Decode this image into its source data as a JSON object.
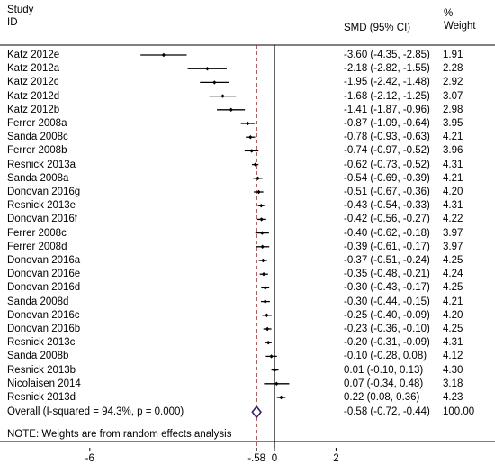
{
  "chart_data": {
    "type": "forest",
    "headers": {
      "study_line1": "Study",
      "study_line2": "ID",
      "effect": "SMD (95% CI)",
      "weight_line1": "%",
      "weight_line2": "Weight"
    },
    "studies": [
      {
        "id": "Katz 2012e",
        "smd": -3.6,
        "lo": -4.35,
        "hi": -2.85,
        "ci_text": "-3.60 (-4.35, -2.85)",
        "weight": "1.91"
      },
      {
        "id": "Katz 2012a",
        "smd": -2.18,
        "lo": -2.82,
        "hi": -1.55,
        "ci_text": "-2.18 (-2.82, -1.55)",
        "weight": "2.28"
      },
      {
        "id": "Katz 2012c",
        "smd": -1.95,
        "lo": -2.42,
        "hi": -1.48,
        "ci_text": "-1.95 (-2.42, -1.48)",
        "weight": "2.92"
      },
      {
        "id": "Katz 2012d",
        "smd": -1.68,
        "lo": -2.12,
        "hi": -1.25,
        "ci_text": "-1.68 (-2.12, -1.25)",
        "weight": "3.07"
      },
      {
        "id": "Katz 2012b",
        "smd": -1.41,
        "lo": -1.87,
        "hi": -0.96,
        "ci_text": "-1.41 (-1.87, -0.96)",
        "weight": "2.98"
      },
      {
        "id": "Ferrer 2008a",
        "smd": -0.87,
        "lo": -1.09,
        "hi": -0.64,
        "ci_text": "-0.87 (-1.09, -0.64)",
        "weight": "3.95"
      },
      {
        "id": "Sanda 2008c",
        "smd": -0.78,
        "lo": -0.93,
        "hi": -0.63,
        "ci_text": "-0.78 (-0.93, -0.63)",
        "weight": "4.21"
      },
      {
        "id": "Ferrer 2008b",
        "smd": -0.74,
        "lo": -0.97,
        "hi": -0.52,
        "ci_text": "-0.74 (-0.97, -0.52)",
        "weight": "3.96"
      },
      {
        "id": "Resnick 2013a",
        "smd": -0.62,
        "lo": -0.73,
        "hi": -0.52,
        "ci_text": "-0.62 (-0.73, -0.52)",
        "weight": "4.31"
      },
      {
        "id": "Sanda 2008a",
        "smd": -0.54,
        "lo": -0.69,
        "hi": -0.39,
        "ci_text": "-0.54 (-0.69, -0.39)",
        "weight": "4.21"
      },
      {
        "id": "Donovan 2016g",
        "smd": -0.51,
        "lo": -0.67,
        "hi": -0.36,
        "ci_text": "-0.51 (-0.67, -0.36)",
        "weight": "4.20"
      },
      {
        "id": "Resnick 2013e",
        "smd": -0.43,
        "lo": -0.54,
        "hi": -0.33,
        "ci_text": "-0.43 (-0.54, -0.33)",
        "weight": "4.31"
      },
      {
        "id": "Donovan 2016f",
        "smd": -0.42,
        "lo": -0.56,
        "hi": -0.27,
        "ci_text": "-0.42 (-0.56, -0.27)",
        "weight": "4.22"
      },
      {
        "id": "Ferrer 2008c",
        "smd": -0.4,
        "lo": -0.62,
        "hi": -0.18,
        "ci_text": "-0.40 (-0.62, -0.18)",
        "weight": "3.97"
      },
      {
        "id": "Ferrer 2008d",
        "smd": -0.39,
        "lo": -0.61,
        "hi": -0.17,
        "ci_text": "-0.39 (-0.61, -0.17)",
        "weight": "3.97"
      },
      {
        "id": "Donovan 2016a",
        "smd": -0.37,
        "lo": -0.51,
        "hi": -0.24,
        "ci_text": "-0.37 (-0.51, -0.24)",
        "weight": "4.25"
      },
      {
        "id": "Donovan 2016e",
        "smd": -0.35,
        "lo": -0.48,
        "hi": -0.21,
        "ci_text": "-0.35 (-0.48, -0.21)",
        "weight": "4.24"
      },
      {
        "id": "Donovan 2016d",
        "smd": -0.3,
        "lo": -0.43,
        "hi": -0.17,
        "ci_text": "-0.30 (-0.43, -0.17)",
        "weight": "4.25"
      },
      {
        "id": "Sanda 2008d",
        "smd": -0.3,
        "lo": -0.44,
        "hi": -0.15,
        "ci_text": "-0.30 (-0.44, -0.15)",
        "weight": "4.21"
      },
      {
        "id": "Donovan 2016c",
        "smd": -0.25,
        "lo": -0.4,
        "hi": -0.09,
        "ci_text": "-0.25 (-0.40, -0.09)",
        "weight": "4.20"
      },
      {
        "id": "Donovan 2016b",
        "smd": -0.23,
        "lo": -0.36,
        "hi": -0.1,
        "ci_text": "-0.23 (-0.36, -0.10)",
        "weight": "4.25"
      },
      {
        "id": "Resnick 2013c",
        "smd": -0.2,
        "lo": -0.31,
        "hi": -0.09,
        "ci_text": "-0.20 (-0.31, -0.09)",
        "weight": "4.31"
      },
      {
        "id": "Sanda 2008b",
        "smd": -0.1,
        "lo": -0.28,
        "hi": 0.08,
        "ci_text": "-0.10 (-0.28, 0.08)",
        "weight": "4.12"
      },
      {
        "id": "Resnick 2013b",
        "smd": 0.01,
        "lo": -0.1,
        "hi": 0.13,
        "ci_text": "0.01 (-0.10, 0.13)",
        "weight": "4.30"
      },
      {
        "id": "Nicolaisen 2014",
        "smd": 0.07,
        "lo": -0.34,
        "hi": 0.48,
        "ci_text": "0.07 (-0.34, 0.48)",
        "weight": "3.18"
      },
      {
        "id": "Resnick 2013d",
        "smd": 0.22,
        "lo": 0.08,
        "hi": 0.36,
        "ci_text": "0.22 (0.08, 0.36)",
        "weight": "4.23"
      }
    ],
    "overall": {
      "label": "Overall  (I-squared = 94.3%, p = 0.000)",
      "smd": -0.58,
      "lo": -0.72,
      "hi": -0.44,
      "ci_text": "-0.58 (-0.72, -0.44)",
      "weight": "100.00"
    },
    "note": "NOTE: Weights are from random effects analysis",
    "x_ticks": [
      -6,
      -0.58,
      0,
      2
    ],
    "x_tick_labels": [
      "-6",
      "-.58",
      "0",
      "2"
    ],
    "colors": {
      "point": "#000000",
      "reference_line": "#9b2d2d",
      "overall_diamond": "#3b1f6b"
    }
  }
}
